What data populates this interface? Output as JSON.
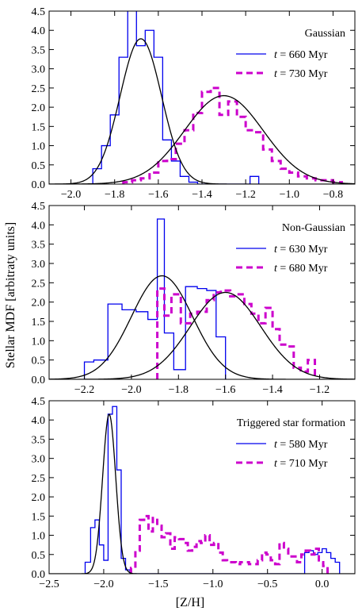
{
  "colors": {
    "blue": "#0000ee",
    "magenta": "#cc00cc",
    "fit": "#000000"
  },
  "ylabel": "Stellar MDF [arbitraty units]",
  "xlabel": "[Z/H]",
  "chart_data": [
    {
      "type": "histogram",
      "panel_label": "Gaussian",
      "xlim": [
        -2.1,
        -0.7
      ],
      "ylim": [
        0,
        4.5
      ],
      "xticks": [
        -2.0,
        -1.8,
        -1.6,
        -1.4,
        -1.2,
        -1.0,
        -0.8
      ],
      "xtick_labels": [
        "−2.0",
        "−1.8",
        "−1.6",
        "−1.4",
        "−1.2",
        "−1.0",
        "−0.8"
      ],
      "yticks": [
        0.0,
        0.5,
        1.0,
        1.5,
        2.0,
        2.5,
        3.0,
        3.5,
        4.0,
        4.5
      ],
      "ytick_labels": [
        "0.0",
        "0.5",
        "1.0",
        "1.5",
        "2.0",
        "2.5",
        "3.0",
        "3.5",
        "4.0",
        "4.5"
      ],
      "series": [
        {
          "name": "t = 660 Myr",
          "legend_t": "t",
          "legend_rest": " = 660 Myr",
          "style": "solid",
          "color_key": "blue",
          "edges": [
            -1.9,
            -1.86,
            -1.82,
            -1.78,
            -1.74,
            -1.7,
            -1.66,
            -1.62,
            -1.58,
            -1.54,
            -1.5,
            -1.46,
            -1.42,
            -1.38,
            -1.34,
            -1.3,
            -1.26,
            -1.22,
            -1.18,
            -1.14
          ],
          "values": [
            0.4,
            1.0,
            1.8,
            3.3,
            4.75,
            3.6,
            4.0,
            3.3,
            1.15,
            0.6,
            0.2,
            0.05,
            0.0,
            0.0,
            0.0,
            0.0,
            0.0,
            0.0,
            0.2
          ]
        },
        {
          "name": "t = 730 Myr",
          "legend_t": "t",
          "legend_rest": " = 730 Myr",
          "style": "dashed",
          "color_key": "magenta",
          "edges": [
            -1.76,
            -1.72,
            -1.68,
            -1.64,
            -1.6,
            -1.56,
            -1.52,
            -1.48,
            -1.44,
            -1.4,
            -1.36,
            -1.32,
            -1.28,
            -1.24,
            -1.2,
            -1.16,
            -1.12,
            -1.08,
            -1.04,
            -1.0,
            -0.96,
            -0.92,
            -0.88,
            -0.84,
            -0.8,
            -0.76
          ],
          "values": [
            0.05,
            0.1,
            0.15,
            0.3,
            0.6,
            0.65,
            1.05,
            1.4,
            1.85,
            2.4,
            2.5,
            1.8,
            2.15,
            1.75,
            1.4,
            1.35,
            0.9,
            0.6,
            0.4,
            0.3,
            0.2,
            0.15,
            0.1,
            0.1,
            0.05
          ]
        }
      ],
      "fits": [
        {
          "mu": -1.68,
          "sigma": 0.095,
          "amp": 3.78
        },
        {
          "mu": -1.3,
          "sigma": 0.18,
          "amp": 2.3
        }
      ]
    },
    {
      "type": "histogram",
      "panel_label": "Non-Gaussian",
      "xlim": [
        -2.35,
        -1.05
      ],
      "ylim": [
        0,
        4.5
      ],
      "xticks": [
        -2.2,
        -2.0,
        -1.8,
        -1.6,
        -1.4,
        -1.2
      ],
      "xtick_labels": [
        "−2.2",
        "−2.0",
        "−1.8",
        "−1.6",
        "−1.4",
        "−1.2"
      ],
      "yticks": [
        0.0,
        0.5,
        1.0,
        1.5,
        2.0,
        2.5,
        3.0,
        3.5,
        4.0,
        4.5
      ],
      "ytick_labels": [
        "0.0",
        "0.5",
        "1.0",
        "1.5",
        "2.0",
        "2.5",
        "3.0",
        "3.5",
        "4.0",
        "4.5"
      ],
      "series": [
        {
          "name": "t = 630 Myr",
          "legend_t": "t",
          "legend_rest": " = 630 Myr",
          "style": "solid",
          "color_key": "blue",
          "edges": [
            -2.2,
            -2.16,
            -2.1,
            -2.04,
            -1.98,
            -1.93,
            -1.89,
            -1.86,
            -1.82,
            -1.77,
            -1.72,
            -1.68,
            -1.64,
            -1.6
          ],
          "values": [
            0.45,
            0.5,
            1.95,
            1.8,
            1.75,
            1.55,
            4.15,
            1.2,
            0.25,
            2.4,
            2.35,
            2.3,
            1.1
          ]
        },
        {
          "name": "t = 680 Myr",
          "legend_t": "t",
          "legend_rest": " = 680 Myr",
          "style": "dashed",
          "color_key": "magenta",
          "edges": [
            -1.89,
            -1.86,
            -1.83,
            -1.79,
            -1.75,
            -1.72,
            -1.68,
            -1.65,
            -1.62,
            -1.58,
            -1.55,
            -1.52,
            -1.49,
            -1.46,
            -1.43,
            -1.4,
            -1.37,
            -1.34,
            -1.31,
            -1.28,
            -1.25,
            -1.22
          ],
          "values": [
            2.35,
            1.65,
            2.2,
            1.45,
            1.7,
            1.75,
            2.05,
            2.25,
            2.3,
            2.15,
            2.2,
            1.95,
            1.7,
            1.45,
            1.85,
            1.3,
            0.9,
            0.85,
            0.3,
            0.2,
            0.5
          ]
        }
      ],
      "fits": [
        {
          "mu": -1.87,
          "sigma": 0.13,
          "amp": 2.68
        },
        {
          "mu": -1.6,
          "sigma": 0.15,
          "amp": 2.25
        }
      ]
    },
    {
      "type": "histogram",
      "panel_label": "Triggered star formation",
      "xlim": [
        -2.5,
        0.3
      ],
      "ylim": [
        0,
        4.5
      ],
      "xticks": [
        -2.5,
        -2.0,
        -1.5,
        -1.0,
        -0.5,
        0.0
      ],
      "xtick_labels": [
        "−2.5",
        "−2.0",
        "−1.5",
        "−1.0",
        "−0.5",
        "0.0"
      ],
      "yticks": [
        0.0,
        0.5,
        1.0,
        1.5,
        2.0,
        2.5,
        3.0,
        3.5,
        4.0,
        4.5
      ],
      "ytick_labels": [
        "0.0",
        "0.5",
        "1.0",
        "1.5",
        "2.0",
        "2.5",
        "3.0",
        "3.5",
        "4.0",
        "4.5"
      ],
      "series": [
        {
          "name": "t = 580 Myr",
          "legend_t": "t",
          "legend_rest": " = 580 Myr",
          "style": "solid",
          "color_key": "blue",
          "edges": [
            -2.17,
            -2.12,
            -2.08,
            -2.04,
            -2.0,
            -1.96,
            -1.92,
            -1.88,
            -1.84,
            -1.8,
            -1.76,
            -0.16,
            -0.12,
            -0.08,
            -0.04,
            0.0,
            0.04,
            0.08,
            0.12,
            0.16
          ],
          "values": [
            0.3,
            1.2,
            1.4,
            0.75,
            0.35,
            4.15,
            4.35,
            2.7,
            0.4,
            0.1,
            0.0,
            0.55,
            0.6,
            0.5,
            0.55,
            0.65,
            0.55,
            0.4,
            0.3
          ]
        },
        {
          "name": "t = 710 Myr",
          "legend_t": "t",
          "legend_rest": " = 710 Myr",
          "style": "dashed",
          "color_key": "magenta",
          "edges": [
            -1.75,
            -1.71,
            -1.67,
            -1.63,
            -1.59,
            -1.55,
            -1.51,
            -1.47,
            -1.43,
            -1.39,
            -1.35,
            -1.31,
            -1.27,
            -1.23,
            -1.19,
            -1.15,
            -1.11,
            -1.07,
            -1.03,
            -0.99,
            -0.95,
            -0.91,
            -0.87,
            -0.83,
            -0.79,
            -0.75,
            -0.71,
            -0.67,
            -0.63,
            -0.59,
            -0.55,
            -0.51,
            -0.47,
            -0.43,
            -0.39,
            -0.35,
            -0.31,
            -0.27,
            -0.23,
            -0.19,
            -0.15,
            -0.11,
            -0.07,
            -0.03,
            0.01,
            0.05
          ],
          "values": [
            0.15,
            0.6,
            1.4,
            1.5,
            1.1,
            1.45,
            1.25,
            0.95,
            1.05,
            0.65,
            0.95,
            0.9,
            0.8,
            0.6,
            0.7,
            0.85,
            0.8,
            1.0,
            0.75,
            0.8,
            0.55,
            0.35,
            0.3,
            0.3,
            0.25,
            0.3,
            0.3,
            0.25,
            0.25,
            0.35,
            0.55,
            0.5,
            0.35,
            0.25,
            0.8,
            0.65,
            0.45,
            0.45,
            0.3,
            0.5,
            0.6,
            0.5,
            0.65,
            0.3,
            0.2
          ]
        }
      ],
      "fits": [
        {
          "mu": -1.95,
          "sigma": 0.06,
          "amp": 4.15
        }
      ]
    }
  ]
}
